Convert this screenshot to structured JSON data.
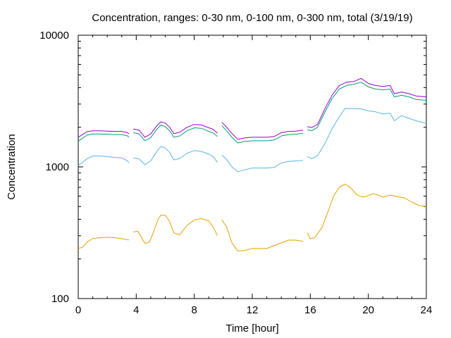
{
  "chart_data": {
    "type": "line",
    "title": "Concentration, ranges: 0-30 nm, 0-100 nm, 0-300 nm, total (3/19/19)",
    "xlabel": "Time [hour]",
    "ylabel": "Concentration",
    "xlim": [
      0,
      24
    ],
    "ylim": [
      100,
      10000
    ],
    "yscale": "log",
    "grid": false,
    "legend": "none",
    "x_ticks": [
      0,
      4,
      8,
      12,
      16,
      20,
      24
    ],
    "x_tick_labels": [
      "0",
      "4",
      "8",
      "12",
      "16",
      "20",
      "24"
    ],
    "y_ticks": [
      100,
      1000,
      10000
    ],
    "y_tick_labels": [
      "100",
      "1000",
      "10000"
    ],
    "series": [
      {
        "color": "#e69f00",
        "segments": [
          [
            [
              0,
              240
            ],
            [
              0.3,
              245
            ],
            [
              0.6,
              268
            ],
            [
              1,
              285
            ],
            [
              1.5,
              290
            ],
            [
              2,
              292
            ],
            [
              2.5,
              290
            ],
            [
              3,
              285
            ],
            [
              3.4,
              280
            ],
            [
              3.5,
              279
            ]
          ],
          [
            [
              3.8,
              320
            ],
            [
              4.1,
              325
            ],
            [
              4.3,
              300
            ],
            [
              4.6,
              262
            ],
            [
              4.9,
              268
            ],
            [
              5.2,
              320
            ],
            [
              5.5,
              400
            ],
            [
              5.7,
              430
            ],
            [
              6,
              430
            ],
            [
              6.3,
              385
            ],
            [
              6.6,
              315
            ],
            [
              7,
              305
            ],
            [
              7.5,
              360
            ],
            [
              8,
              395
            ],
            [
              8.5,
              405
            ],
            [
              9,
              390
            ],
            [
              9.3,
              350
            ],
            [
              9.6,
              300
            ]
          ],
          [
            [
              9.9,
              395
            ],
            [
              10.2,
              355
            ],
            [
              10.6,
              265
            ],
            [
              11,
              230
            ],
            [
              11.5,
              232
            ],
            [
              12,
              240
            ],
            [
              13,
              240
            ],
            [
              14,
              265
            ],
            [
              14.5,
              278
            ],
            [
              15,
              278
            ],
            [
              15.5,
              272
            ]
          ],
          [
            [
              15.8,
              315
            ],
            [
              16,
              285
            ],
            [
              16.3,
              290
            ],
            [
              16.8,
              345
            ],
            [
              17.2,
              450
            ],
            [
              17.6,
              600
            ],
            [
              18,
              700
            ],
            [
              18.4,
              740
            ],
            [
              18.8,
              690
            ],
            [
              19.2,
              615
            ],
            [
              19.6,
              590
            ],
            [
              20,
              605
            ],
            [
              20.3,
              625
            ],
            [
              20.7,
              610
            ],
            [
              21,
              590
            ],
            [
              21.5,
              610
            ],
            [
              22,
              595
            ],
            [
              22.5,
              580
            ],
            [
              23,
              540
            ],
            [
              23.5,
              510
            ],
            [
              24,
              500
            ]
          ]
        ]
      },
      {
        "color": "#56b4e9",
        "segments": [
          [
            [
              0,
              1030
            ],
            [
              0.3,
              1080
            ],
            [
              0.6,
              1150
            ],
            [
              1,
              1210
            ],
            [
              1.5,
              1210
            ],
            [
              2,
              1200
            ],
            [
              2.5,
              1180
            ],
            [
              3,
              1170
            ],
            [
              3.4,
              1110
            ],
            [
              3.5,
              1070
            ]
          ],
          [
            [
              3.8,
              1170
            ],
            [
              4.2,
              1150
            ],
            [
              4.6,
              1040
            ],
            [
              5,
              1110
            ],
            [
              5.4,
              1300
            ],
            [
              5.7,
              1430
            ],
            [
              6,
              1390
            ],
            [
              6.3,
              1290
            ],
            [
              6.6,
              1130
            ],
            [
              7,
              1160
            ],
            [
              7.5,
              1270
            ],
            [
              8,
              1330
            ],
            [
              8.5,
              1310
            ],
            [
              9,
              1250
            ],
            [
              9.3,
              1200
            ],
            [
              9.6,
              1080
            ]
          ],
          [
            [
              9.9,
              1230
            ],
            [
              10.2,
              1150
            ],
            [
              10.6,
              1000
            ],
            [
              11,
              920
            ],
            [
              11.5,
              950
            ],
            [
              12,
              980
            ],
            [
              13,
              980
            ],
            [
              13.5,
              990
            ],
            [
              14,
              1070
            ],
            [
              14.5,
              1100
            ],
            [
              15,
              1110
            ],
            [
              15.5,
              1120
            ]
          ],
          [
            [
              15.8,
              1200
            ],
            [
              16.1,
              1150
            ],
            [
              16.5,
              1220
            ],
            [
              17,
              1500
            ],
            [
              17.5,
              1950
            ],
            [
              18,
              2400
            ],
            [
              18.4,
              2780
            ],
            [
              19,
              2770
            ],
            [
              19.5,
              2760
            ],
            [
              20,
              2660
            ],
            [
              20.5,
              2620
            ],
            [
              21,
              2520
            ],
            [
              21.5,
              2560
            ],
            [
              21.8,
              2240
            ],
            [
              22.3,
              2450
            ],
            [
              22.8,
              2340
            ],
            [
              23.3,
              2240
            ],
            [
              24,
              2140
            ]
          ]
        ]
      },
      {
        "color": "#009e73",
        "segments": [
          [
            [
              0,
              1570
            ],
            [
              0.3,
              1650
            ],
            [
              0.6,
              1740
            ],
            [
              1,
              1780
            ],
            [
              1.5,
              1780
            ],
            [
              2,
              1770
            ],
            [
              2.5,
              1760
            ],
            [
              3,
              1760
            ],
            [
              3.4,
              1720
            ],
            [
              3.5,
              1680
            ]
          ],
          [
            [
              3.8,
              1820
            ],
            [
              4.2,
              1780
            ],
            [
              4.6,
              1580
            ],
            [
              5,
              1670
            ],
            [
              5.4,
              1920
            ],
            [
              5.7,
              2080
            ],
            [
              6,
              2020
            ],
            [
              6.3,
              1880
            ],
            [
              6.6,
              1680
            ],
            [
              7,
              1720
            ],
            [
              7.5,
              1880
            ],
            [
              8,
              1980
            ],
            [
              8.5,
              1960
            ],
            [
              9,
              1860
            ],
            [
              9.3,
              1810
            ],
            [
              9.6,
              1700
            ]
          ],
          [
            [
              9.9,
              2060
            ],
            [
              10.2,
              1900
            ],
            [
              10.6,
              1680
            ],
            [
              11,
              1520
            ],
            [
              11.5,
              1560
            ],
            [
              12,
              1580
            ],
            [
              13,
              1580
            ],
            [
              13.5,
              1600
            ],
            [
              14,
              1720
            ],
            [
              14.5,
              1760
            ],
            [
              15,
              1770
            ],
            [
              15.5,
              1800
            ]
          ],
          [
            [
              15.8,
              1920
            ],
            [
              16.1,
              1880
            ],
            [
              16.5,
              2000
            ],
            [
              17,
              2600
            ],
            [
              17.5,
              3300
            ],
            [
              18,
              3900
            ],
            [
              18.5,
              4150
            ],
            [
              19,
              4250
            ],
            [
              19.5,
              4400
            ],
            [
              20,
              4050
            ],
            [
              20.5,
              3900
            ],
            [
              21,
              3850
            ],
            [
              21.5,
              3900
            ],
            [
              21.8,
              3400
            ],
            [
              22.3,
              3500
            ],
            [
              22.8,
              3400
            ],
            [
              23.3,
              3250
            ],
            [
              24,
              3200
            ]
          ]
        ]
      },
      {
        "color": "#9400d3",
        "segments": [
          [
            [
              0,
              1680
            ],
            [
              0.3,
              1760
            ],
            [
              0.6,
              1850
            ],
            [
              1,
              1880
            ],
            [
              1.5,
              1880
            ],
            [
              2,
              1870
            ],
            [
              2.5,
              1860
            ],
            [
              3,
              1860
            ],
            [
              3.4,
              1820
            ],
            [
              3.5,
              1780
            ]
          ],
          [
            [
              3.8,
              1940
            ],
            [
              4.2,
              1900
            ],
            [
              4.6,
              1680
            ],
            [
              5,
              1780
            ],
            [
              5.4,
              2040
            ],
            [
              5.7,
              2200
            ],
            [
              6,
              2150
            ],
            [
              6.3,
              2000
            ],
            [
              6.6,
              1790
            ],
            [
              7,
              1830
            ],
            [
              7.5,
              2000
            ],
            [
              8,
              2100
            ],
            [
              8.5,
              2080
            ],
            [
              9,
              1980
            ],
            [
              9.3,
              1930
            ],
            [
              9.6,
              1800
            ]
          ],
          [
            [
              9.9,
              2180
            ],
            [
              10.2,
              2020
            ],
            [
              10.6,
              1790
            ],
            [
              11,
              1620
            ],
            [
              11.5,
              1660
            ],
            [
              12,
              1680
            ],
            [
              13,
              1680
            ],
            [
              13.5,
              1700
            ],
            [
              14,
              1820
            ],
            [
              14.5,
              1860
            ],
            [
              15,
              1870
            ],
            [
              15.5,
              1900
            ]
          ],
          [
            [
              15.8,
              2020
            ],
            [
              16.1,
              1990
            ],
            [
              16.5,
              2100
            ],
            [
              17,
              2750
            ],
            [
              17.5,
              3500
            ],
            [
              18,
              4150
            ],
            [
              18.5,
              4400
            ],
            [
              19,
              4450
            ],
            [
              19.5,
              4700
            ],
            [
              20,
              4300
            ],
            [
              20.5,
              4150
            ],
            [
              21,
              4080
            ],
            [
              21.5,
              4150
            ],
            [
              21.8,
              3600
            ],
            [
              22.3,
              3700
            ],
            [
              22.8,
              3600
            ],
            [
              23.3,
              3450
            ],
            [
              24,
              3400
            ]
          ]
        ]
      }
    ]
  }
}
